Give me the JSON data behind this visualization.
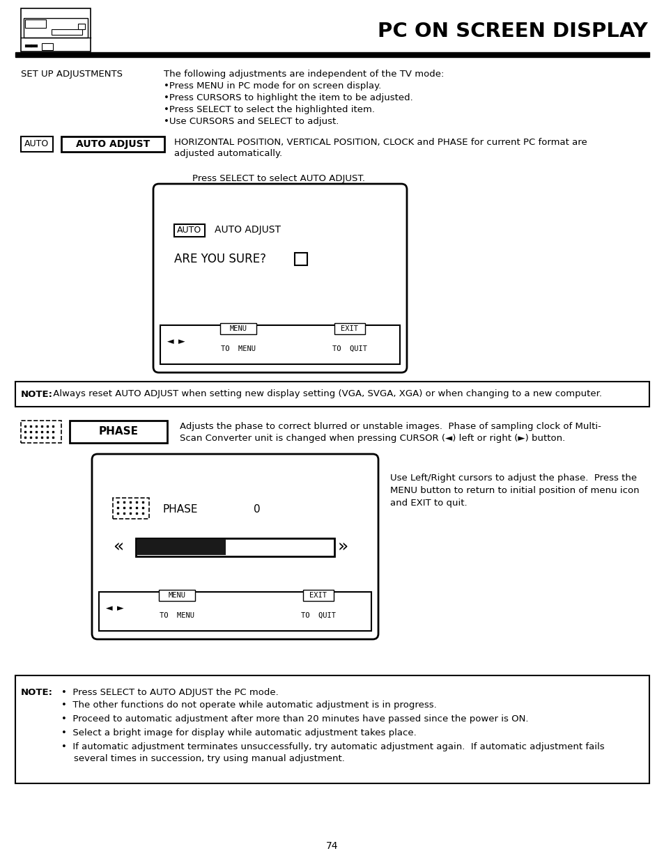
{
  "title": "PC ON SCREEN DISPLAY",
  "page_number": "74",
  "bg_color": "#ffffff",
  "text_color": "#000000",
  "section1_label": "SET UP ADJUSTMENTS",
  "section1_text": [
    "The following adjustments are independent of the TV mode:",
    "•Press MENU in PC mode for on screen display.",
    "•Press CURSORS to highlight the item to be adjusted.",
    "•Press SELECT to select the highlighted item.",
    "•Use CURSORS and SELECT to adjust."
  ],
  "auto_label": "AUTO",
  "auto_adjust_label": "AUTO ADJUST",
  "auto_adjust_text_1": "HORIZONTAL POSITION, VERTICAL POSITION, CLOCK and PHASE for current PC format are",
  "auto_adjust_text_2": "adjusted automatically.",
  "press_select_text": "Press SELECT to select AUTO ADJUST.",
  "screen1_auto_label": "AUTO",
  "screen1_auto_adjust": "AUTO ADJUST",
  "screen1_are_you": "ARE YOU SURE?",
  "screen1_menu": "MENU",
  "screen1_to_menu": "TO  MENU",
  "screen1_exit": "EXIT",
  "screen1_to_quit": "TO  QUIT",
  "note1_bold": "NOTE:",
  "note1_text": " Always reset AUTO ADJUST when setting new display setting (VGA, SVGA, XGA) or when changing to a new computer.",
  "phase_label": "PHASE",
  "phase_text_1": "Adjusts the phase to correct blurred or unstable images.  Phase of sampling clock of Multi-",
  "phase_text_2": "Scan Converter unit is changed when pressing CURSOR (◄) left or right (►) button.",
  "phase_instruction_1": "Use Left/Right cursors to adjust the phase.  Press the",
  "phase_instruction_2": "MENU button to return to initial position of menu icon",
  "phase_instruction_3": "and EXIT to quit.",
  "screen2_phase": "PHASE",
  "screen2_value": "0",
  "screen2_menu": "MENU",
  "screen2_to_menu": "TO  MENU",
  "screen2_exit": "EXIT",
  "screen2_to_quit": "TO  QUIT",
  "note2_label": "NOTE:",
  "note2_bullet1": "Press SELECT to AUTO ADJUST the PC mode.",
  "note2_bullet2": "The other functions do not operate while automatic adjustment is in progress.",
  "note2_bullet3": "Proceed to automatic adjustment after more than 20 minutes have passed since the power is ON.",
  "note2_bullet4": "Select a bright image for display while automatic adjustment takes place.",
  "note2_bullet5a": "If automatic adjustment terminates unsuccessfully, try automatic adjustment again.  If automatic adjustment fails",
  "note2_bullet5b": "several times in succession, try using manual adjustment."
}
